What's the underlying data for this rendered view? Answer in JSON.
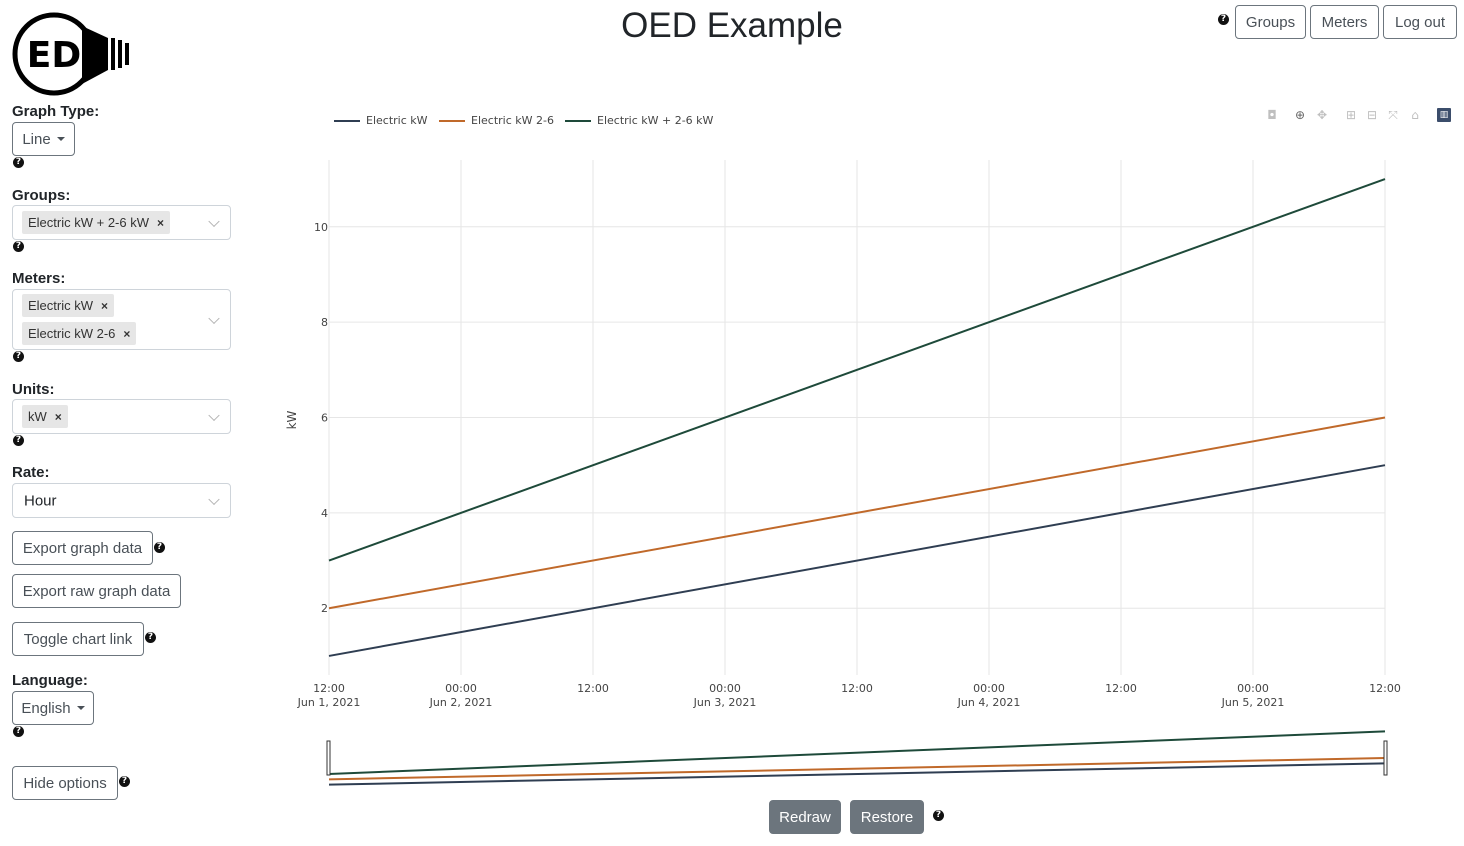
{
  "app": {
    "title": "OED Example",
    "logo_text": "ED"
  },
  "nav": {
    "groups": "Groups",
    "meters": "Meters",
    "logout": "Log out",
    "help": "?"
  },
  "options": {
    "graph_type_label": "Graph Type:",
    "graph_type_value": "Line",
    "groups_label": "Groups:",
    "groups_selected": [
      "Electric kW + 2-6 kW"
    ],
    "meters_label": "Meters:",
    "meters_selected": [
      "Electric kW",
      "Electric kW 2-6"
    ],
    "units_label": "Units:",
    "units_selected": [
      "kW"
    ],
    "rate_label": "Rate:",
    "rate_value": "Hour",
    "export_graph": "Export graph data",
    "export_raw": "Export raw graph data",
    "toggle_link": "Toggle chart link",
    "language_label": "Language:",
    "language_value": "English",
    "hide_options": "Hide options",
    "chip_remove": "×"
  },
  "chart_controls": {
    "redraw": "Redraw",
    "restore": "Restore"
  },
  "colors": {
    "series1": "#2f3e52",
    "series2": "#c0692a",
    "series3": "#1e4a3a",
    "grid": "#e6e6e6"
  },
  "modebar_icons": [
    "camera-icon",
    "zoom-icon",
    "pan-icon",
    "zoom-in-icon",
    "zoom-out-icon",
    "autoscale-icon",
    "home-icon",
    "plotly-logo-icon"
  ],
  "chart_data": {
    "type": "line",
    "ylabel": "kW",
    "ylim": [
      0.6,
      11.4
    ],
    "yticks": [
      2,
      4,
      6,
      8,
      10
    ],
    "x_range_hours": [
      "2021-06-01 12:00",
      "2021-06-05 12:00"
    ],
    "x_ticks": [
      {
        "line1": "12:00",
        "line2": "Jun 1, 2021"
      },
      {
        "line1": "00:00",
        "line2": "Jun 2, 2021"
      },
      {
        "line1": "12:00",
        "line2": ""
      },
      {
        "line1": "00:00",
        "line2": "Jun 3, 2021"
      },
      {
        "line1": "12:00",
        "line2": ""
      },
      {
        "line1": "00:00",
        "line2": "Jun 4, 2021"
      },
      {
        "line1": "12:00",
        "line2": ""
      },
      {
        "line1": "00:00",
        "line2": "Jun 5, 2021"
      },
      {
        "line1": "12:00",
        "line2": ""
      }
    ],
    "series": [
      {
        "name": "Electric kW",
        "color": "#2f3e52",
        "x": [
          "2021-06-01 12:00",
          "2021-06-05 12:00"
        ],
        "y": [
          1,
          5
        ]
      },
      {
        "name": "Electric kW 2-6",
        "color": "#c0692a",
        "x": [
          "2021-06-01 12:00",
          "2021-06-05 12:00"
        ],
        "y": [
          2,
          6
        ]
      },
      {
        "name": "Electric kW + 2-6 kW",
        "color": "#1e4a3a",
        "x": [
          "2021-06-01 12:00",
          "2021-06-05 12:00"
        ],
        "y": [
          3,
          11
        ]
      }
    ],
    "legend_position": "top-left",
    "grid": true
  }
}
